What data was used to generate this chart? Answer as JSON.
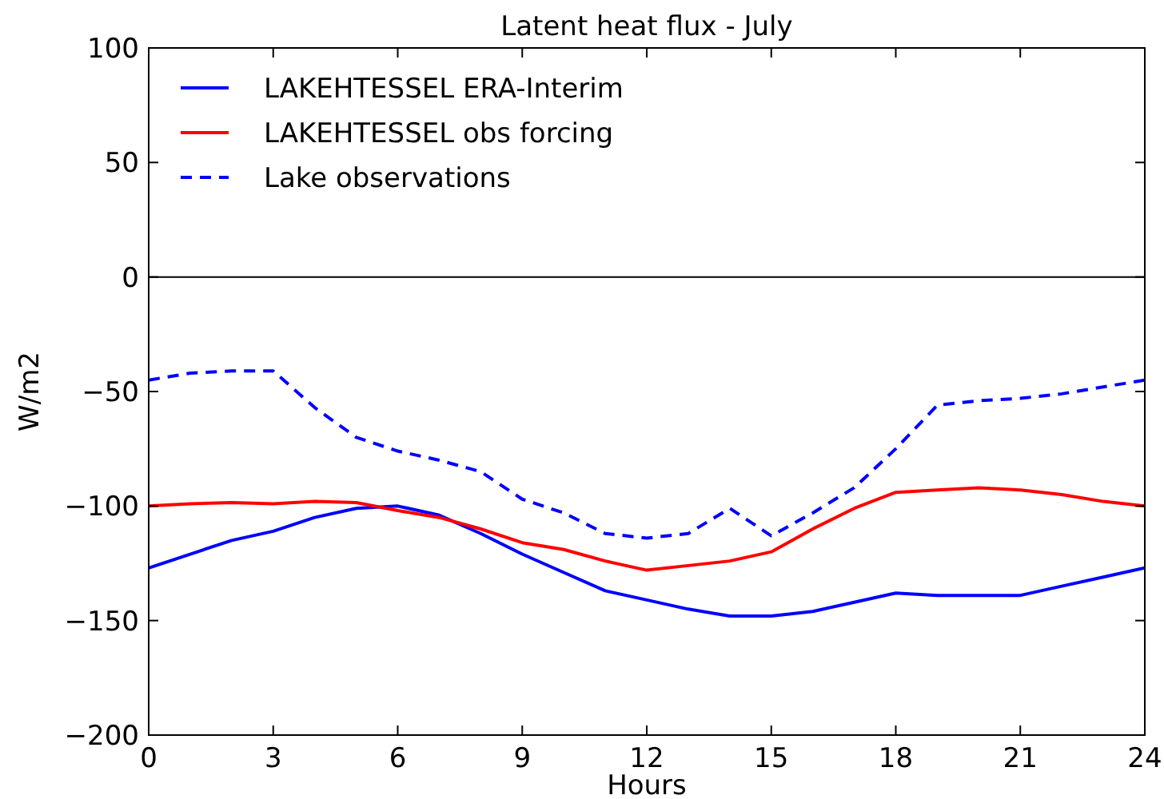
{
  "chart_data": {
    "type": "line",
    "title": "Latent heat flux - July",
    "xlabel": "Hours",
    "ylabel": "W/m2",
    "x": [
      0,
      1,
      2,
      3,
      4,
      5,
      6,
      7,
      8,
      9,
      10,
      11,
      12,
      13,
      14,
      15,
      16,
      17,
      18,
      19,
      20,
      21,
      22,
      23,
      24
    ],
    "series": [
      {
        "name": "LAKEHTESSEL ERA-Interim",
        "color": "#0000ff",
        "line_style": "solid",
        "values": [
          -127,
          -121,
          -115,
          -111,
          -105,
          -101,
          -100,
          -104,
          -112,
          -121,
          -129,
          -137,
          -141,
          -145,
          -148,
          -148,
          -146,
          -142,
          -138,
          -139,
          -139,
          -139,
          -135,
          -131,
          -127
        ]
      },
      {
        "name": "LAKEHTESSEL obs forcing",
        "color": "#ff0000",
        "line_style": "solid",
        "values": [
          -100,
          -99,
          -98.5,
          -99,
          -98,
          -98.5,
          -102,
          -105,
          -110,
          -116,
          -119,
          -124,
          -128,
          -126,
          -124,
          -120,
          -110,
          -101,
          -94,
          -93,
          -92,
          -93,
          -95,
          -98,
          -100
        ]
      },
      {
        "name": "Lake observations",
        "color": "#0000ff",
        "line_style": "dashed",
        "values": [
          -45,
          -42,
          -41,
          -41,
          -57,
          -70,
          -76,
          -80,
          -85,
          -97,
          -103,
          -112,
          -114,
          -112,
          -101,
          -113,
          -103,
          -92,
          -75,
          -56,
          -54,
          -53,
          -51,
          -48,
          -45
        ]
      }
    ],
    "xlim": [
      0,
      24
    ],
    "xticks": [
      0,
      3,
      6,
      9,
      12,
      15,
      18,
      21,
      24
    ],
    "ylim": [
      -200,
      100
    ],
    "yticks": [
      -200,
      -150,
      -100,
      -50,
      0,
      50,
      100
    ],
    "ref_lines": [
      {
        "axis": "y",
        "value": 0,
        "color": "#000000"
      }
    ],
    "grid": false,
    "legend": "top left",
    "marker": "none"
  }
}
